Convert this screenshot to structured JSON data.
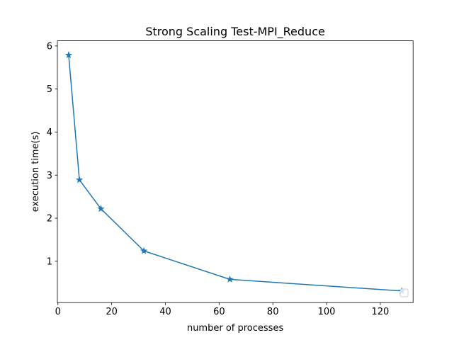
{
  "chart_data": {
    "type": "line",
    "title": "Strong Scaling Test-MPI_Reduce",
    "xlabel": "number of processes",
    "ylabel": "execution time(s)",
    "xlim": [
      -0.2,
      132.2
    ],
    "ylim": [
      0.04,
      6.12
    ],
    "xticks": [
      0,
      20,
      40,
      60,
      80,
      100,
      120
    ],
    "yticks": [
      1,
      2,
      3,
      4,
      5,
      6
    ],
    "grid": false,
    "legend": {
      "position": "lower right",
      "entries": []
    },
    "series": [
      {
        "marker": "star",
        "color": "#1f77b4",
        "x": [
          4,
          8,
          16,
          32,
          64,
          128
        ],
        "y": [
          5.79,
          2.89,
          2.22,
          1.24,
          0.58,
          0.31
        ]
      }
    ]
  }
}
